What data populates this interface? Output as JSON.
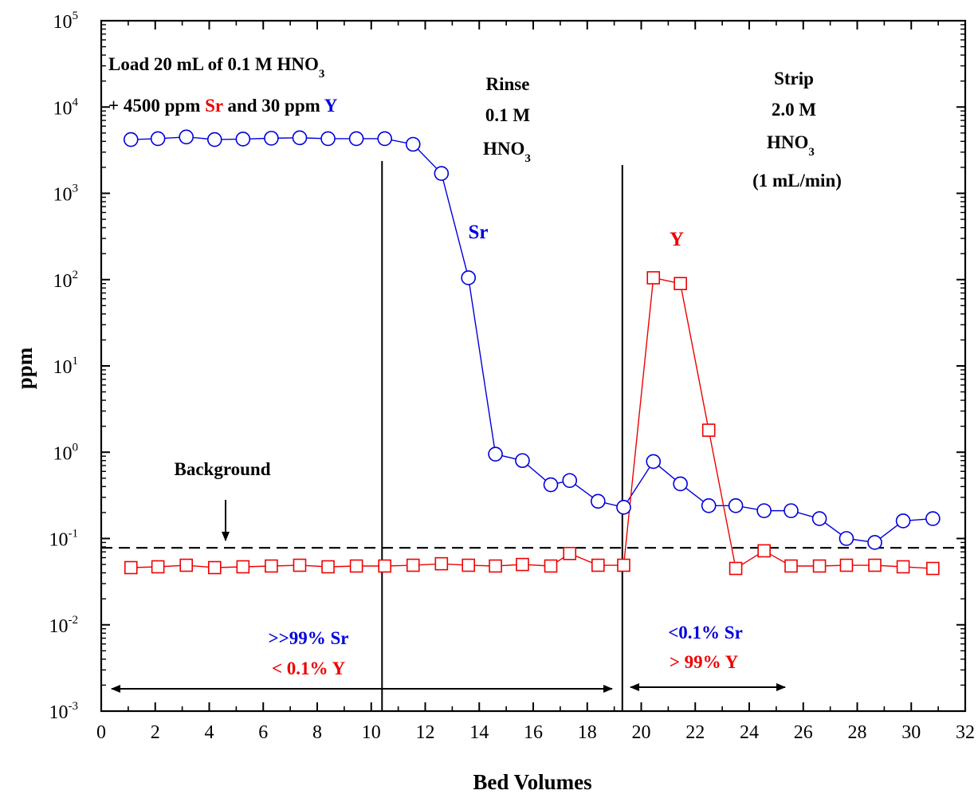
{
  "chart_data": {
    "type": "scatter",
    "xlabel": "Bed Volumes",
    "ylabel": "ppm",
    "xlim": [
      0,
      32
    ],
    "ylim_exp": [
      -3,
      5
    ],
    "log_y": true,
    "grid": false,
    "x_ticks": [
      "0",
      "2",
      "4",
      "6",
      "8",
      "10",
      "12",
      "14",
      "16",
      "18",
      "20",
      "22",
      "24",
      "26",
      "28",
      "30",
      "32"
    ],
    "y_tick_base": "10",
    "y_tick_exps": [
      "-3",
      "-2",
      "-1",
      "0",
      "1",
      "2",
      "3",
      "4",
      "5"
    ],
    "colors": {
      "sr": "#0000dd",
      "y": "#ee0000",
      "axis": "#000000"
    },
    "series": [
      {
        "name": "Sr",
        "marker": "circle",
        "color": "#0000dd",
        "x": [
          1.1,
          2.1,
          3.15,
          4.2,
          5.25,
          6.3,
          7.35,
          8.4,
          9.45,
          10.5,
          11.55,
          12.6,
          13.6,
          14.6,
          15.6,
          16.65,
          17.35,
          18.4,
          19.35,
          20.45,
          21.45,
          22.5,
          23.5,
          24.55,
          25.55,
          26.6,
          27.6,
          28.65,
          29.7,
          30.8
        ],
        "y": [
          4200,
          4300,
          4500,
          4200,
          4250,
          4350,
          4400,
          4300,
          4300,
          4300,
          3700,
          1700,
          105,
          0.95,
          0.8,
          0.42,
          0.47,
          0.27,
          0.23,
          0.78,
          0.43,
          0.24,
          0.24,
          0.21,
          0.21,
          0.17,
          0.1,
          0.09,
          0.16,
          0.17
        ]
      },
      {
        "name": "Y",
        "marker": "square",
        "color": "#ee0000",
        "x": [
          1.1,
          2.1,
          3.15,
          4.2,
          5.25,
          6.3,
          7.35,
          8.4,
          9.45,
          10.5,
          11.55,
          12.6,
          13.6,
          14.6,
          15.6,
          16.65,
          17.35,
          18.4,
          19.35,
          20.45,
          21.45,
          22.5,
          23.5,
          24.55,
          25.55,
          26.6,
          27.6,
          28.65,
          29.7,
          30.8
        ],
        "y": [
          0.046,
          0.047,
          0.049,
          0.046,
          0.047,
          0.048,
          0.049,
          0.047,
          0.048,
          0.048,
          0.049,
          0.051,
          0.049,
          0.048,
          0.05,
          0.048,
          0.067,
          0.049,
          0.049,
          105,
          90,
          1.8,
          0.045,
          0.072,
          0.048,
          0.048,
          0.049,
          0.049,
          0.047,
          0.045
        ]
      }
    ],
    "background_level": 0.078,
    "section_lines_x": [
      10.4,
      19.3
    ],
    "annotations": {
      "load_line1": "Load 20 mL of 0.1 M HNO",
      "load_line1_sub": "3",
      "load_line2_a": "+ 4500 ppm ",
      "load_line2_sr": "Sr",
      "load_line2_b": " and 30 ppm ",
      "load_line2_y": "Y",
      "rinse_1": "Rinse",
      "rinse_2": "0.1 M",
      "rinse_3": "HNO",
      "rinse_3_sub": "3",
      "strip_1": "Strip",
      "strip_2": "2.0 M",
      "strip_3": "HNO",
      "strip_3_sub": "3",
      "strip_4": "(1 mL/min)",
      "sr_label": "Sr",
      "y_label": "Y",
      "background": "Background",
      "left_sr": ">>99% Sr",
      "left_y": "< 0.1% Y",
      "right_sr": "<0.1% Sr",
      "right_y": "> 99% Y"
    }
  }
}
